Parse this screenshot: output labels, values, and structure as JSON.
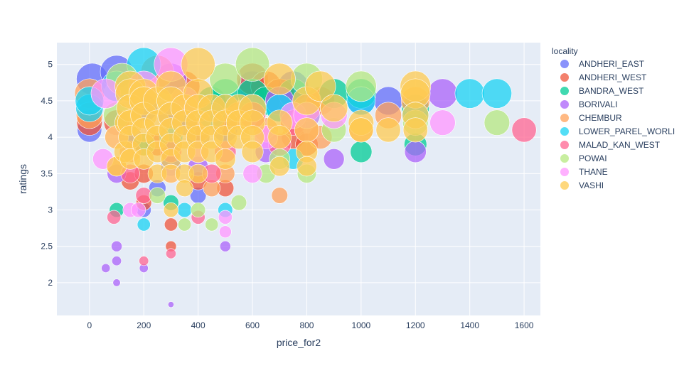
{
  "chart_data": {
    "type": "scatter",
    "xlabel": "price_for2",
    "ylabel": "ratings",
    "xlim": [
      -120,
      1660
    ],
    "ylim": [
      1.55,
      5.3
    ],
    "xticks": [
      0,
      200,
      400,
      600,
      800,
      1000,
      1200,
      1400,
      1600
    ],
    "yticks": [
      2,
      2.5,
      3,
      3.5,
      4,
      4.5,
      5
    ],
    "grid": true,
    "plot_bgcolor": "#e5ecf6",
    "legend": {
      "title": "locality",
      "placement": "right"
    },
    "series": [
      {
        "name": "ANDHERI_EAST",
        "color": "#636efa",
        "points": [
          [
            0,
            4.1
          ],
          [
            10,
            4.8
          ],
          [
            100,
            4.9
          ],
          [
            150,
            4.0
          ],
          [
            200,
            4.4
          ],
          [
            200,
            3.0
          ],
          [
            250,
            3.3
          ],
          [
            300,
            4.3
          ],
          [
            300,
            3.6
          ],
          [
            350,
            4.2
          ],
          [
            400,
            3.2
          ],
          [
            400,
            4.0
          ],
          [
            500,
            4.1
          ],
          [
            600,
            4.7
          ],
          [
            700,
            4.5
          ],
          [
            750,
            4.7
          ],
          [
            800,
            4.3
          ],
          [
            1000,
            4.5
          ],
          [
            1100,
            4.5
          ]
        ]
      },
      {
        "name": "ANDHERI_WEST",
        "color": "#ef553b",
        "points": [
          [
            0,
            4.2
          ],
          [
            100,
            4.2
          ],
          [
            150,
            3.4
          ],
          [
            200,
            3.5
          ],
          [
            200,
            3.1
          ],
          [
            250,
            3.9
          ],
          [
            300,
            2.8
          ],
          [
            300,
            2.5
          ],
          [
            350,
            4.7
          ],
          [
            400,
            3.4
          ],
          [
            500,
            4.2
          ],
          [
            500,
            3.3
          ],
          [
            600,
            4.8
          ],
          [
            650,
            4.7
          ],
          [
            700,
            4.6
          ],
          [
            750,
            4.0
          ],
          [
            800,
            3.9
          ],
          [
            850,
            4.5
          ]
        ]
      },
      {
        "name": "BANDRA_WEST",
        "color": "#00cc96",
        "points": [
          [
            100,
            3.0
          ],
          [
            200,
            3.9
          ],
          [
            300,
            3.1
          ],
          [
            450,
            4.5
          ],
          [
            500,
            4.6
          ],
          [
            600,
            4.6
          ],
          [
            650,
            4.5
          ],
          [
            700,
            4.4
          ],
          [
            750,
            4.6
          ],
          [
            800,
            4.3
          ],
          [
            900,
            4.6
          ],
          [
            1000,
            3.8
          ],
          [
            1000,
            4.6
          ],
          [
            1200,
            3.9
          ],
          [
            1200,
            4.4
          ]
        ]
      },
      {
        "name": "BORIVALI",
        "color": "#ab63fa",
        "points": [
          [
            60,
            2.2
          ],
          [
            100,
            2.0
          ],
          [
            100,
            2.3
          ],
          [
            100,
            2.5
          ],
          [
            100,
            3.5
          ],
          [
            200,
            2.2
          ],
          [
            300,
            1.7
          ],
          [
            300,
            4.8
          ],
          [
            400,
            3.6
          ],
          [
            500,
            2.5
          ],
          [
            650,
            3.8
          ],
          [
            700,
            4.5
          ],
          [
            900,
            3.7
          ],
          [
            1200,
            3.8
          ],
          [
            1300,
            4.6
          ]
        ]
      },
      {
        "name": "CHEMBUR",
        "color": "#ffa15a",
        "points": [
          [
            0,
            4.6
          ],
          [
            0,
            4.3
          ],
          [
            100,
            3.6
          ],
          [
            150,
            3.8
          ],
          [
            250,
            4.9
          ],
          [
            300,
            3.9
          ],
          [
            400,
            4.1
          ],
          [
            450,
            3.3
          ],
          [
            500,
            3.5
          ],
          [
            550,
            4.3
          ],
          [
            650,
            4.1
          ],
          [
            700,
            3.2
          ],
          [
            800,
            4.4
          ],
          [
            850,
            4.0
          ],
          [
            1000,
            4.1
          ],
          [
            1100,
            4.3
          ],
          [
            1200,
            4.5
          ]
        ]
      },
      {
        "name": "LOWER_PAREL_WORLI",
        "color": "#19d3f3",
        "points": [
          [
            0,
            4.4
          ],
          [
            0,
            4.5
          ],
          [
            100,
            4.7
          ],
          [
            200,
            5.0
          ],
          [
            200,
            2.8
          ],
          [
            300,
            4.0
          ],
          [
            350,
            3.0
          ],
          [
            450,
            4.3
          ],
          [
            500,
            3.0
          ],
          [
            600,
            4.4
          ],
          [
            700,
            4.4
          ],
          [
            750,
            3.7
          ],
          [
            1000,
            4.5
          ],
          [
            1200,
            4.3
          ],
          [
            1400,
            4.6
          ],
          [
            1500,
            4.6
          ]
        ]
      },
      {
        "name": "MALAD_KAN_WEST",
        "color": "#ff6692",
        "points": [
          [
            90,
            2.9
          ],
          [
            150,
            3.5
          ],
          [
            200,
            2.3
          ],
          [
            200,
            3.2
          ],
          [
            300,
            2.4
          ],
          [
            300,
            3.8
          ],
          [
            400,
            2.9
          ],
          [
            450,
            3.5
          ],
          [
            500,
            3.8
          ],
          [
            600,
            4.3
          ],
          [
            700,
            3.9
          ],
          [
            750,
            4.2
          ],
          [
            800,
            4.1
          ],
          [
            1600,
            4.1
          ]
        ]
      },
      {
        "name": "POWAI",
        "color": "#b6e880",
        "points": [
          [
            100,
            4.3
          ],
          [
            120,
            4.8
          ],
          [
            250,
            3.2
          ],
          [
            350,
            2.8
          ],
          [
            400,
            3.0
          ],
          [
            450,
            2.8
          ],
          [
            500,
            4.8
          ],
          [
            550,
            3.1
          ],
          [
            600,
            5.0
          ],
          [
            650,
            3.5
          ],
          [
            700,
            3.7
          ],
          [
            800,
            3.5
          ],
          [
            800,
            4.8
          ],
          [
            900,
            4.1
          ],
          [
            1000,
            4.7
          ],
          [
            1200,
            4.2
          ],
          [
            1500,
            4.2
          ]
        ]
      },
      {
        "name": "THANE",
        "color": "#ff97ff",
        "points": [
          [
            50,
            3.7
          ],
          [
            60,
            4.6
          ],
          [
            100,
            4.0
          ],
          [
            150,
            3.0
          ],
          [
            180,
            3.0
          ],
          [
            200,
            4.7
          ],
          [
            300,
            5.0
          ],
          [
            300,
            3.5
          ],
          [
            350,
            4.5
          ],
          [
            400,
            3.8
          ],
          [
            500,
            2.7
          ],
          [
            500,
            2.9
          ],
          [
            600,
            3.5
          ],
          [
            650,
            4.0
          ],
          [
            750,
            4.3
          ],
          [
            800,
            4.3
          ],
          [
            900,
            4.3
          ],
          [
            1300,
            4.2
          ]
        ]
      },
      {
        "name": "VASHI",
        "color": "#fecb52",
        "points": [
          [
            100,
            3.6
          ],
          [
            100,
            4.0
          ],
          [
            130,
            3.8
          ],
          [
            140,
            4.2
          ],
          [
            150,
            4.7
          ],
          [
            150,
            4.6
          ],
          [
            150,
            4.4
          ],
          [
            150,
            4.2
          ],
          [
            150,
            4.0
          ],
          [
            150,
            3.7
          ],
          [
            200,
            4.6
          ],
          [
            200,
            4.5
          ],
          [
            200,
            4.3
          ],
          [
            200,
            4.1
          ],
          [
            200,
            3.9
          ],
          [
            200,
            3.7
          ],
          [
            250,
            4.5
          ],
          [
            250,
            4.2
          ],
          [
            250,
            4.0
          ],
          [
            250,
            3.8
          ],
          [
            250,
            3.5
          ],
          [
            300,
            4.7
          ],
          [
            300,
            4.5
          ],
          [
            300,
            4.3
          ],
          [
            300,
            4.1
          ],
          [
            300,
            3.9
          ],
          [
            300,
            3.7
          ],
          [
            300,
            3.5
          ],
          [
            300,
            3.0
          ],
          [
            350,
            4.4
          ],
          [
            350,
            4.2
          ],
          [
            350,
            4.0
          ],
          [
            350,
            3.8
          ],
          [
            350,
            3.5
          ],
          [
            350,
            3.3
          ],
          [
            400,
            5.0
          ],
          [
            400,
            4.6
          ],
          [
            400,
            4.4
          ],
          [
            400,
            4.2
          ],
          [
            400,
            4.0
          ],
          [
            400,
            3.8
          ],
          [
            400,
            3.5
          ],
          [
            450,
            4.4
          ],
          [
            450,
            4.2
          ],
          [
            450,
            4.0
          ],
          [
            450,
            3.8
          ],
          [
            500,
            4.4
          ],
          [
            500,
            4.2
          ],
          [
            500,
            4.0
          ],
          [
            500,
            3.7
          ],
          [
            550,
            4.4
          ],
          [
            550,
            4.2
          ],
          [
            550,
            4.0
          ],
          [
            600,
            4.4
          ],
          [
            600,
            4.2
          ],
          [
            600,
            4.0
          ],
          [
            600,
            3.8
          ],
          [
            700,
            4.8
          ],
          [
            700,
            4.2
          ],
          [
            700,
            4.0
          ],
          [
            700,
            3.6
          ],
          [
            800,
            4.5
          ],
          [
            800,
            4.1
          ],
          [
            800,
            3.8
          ],
          [
            800,
            3.6
          ],
          [
            850,
            4.7
          ],
          [
            900,
            4.4
          ],
          [
            1000,
            4.2
          ],
          [
            1000,
            4.1
          ],
          [
            1100,
            4.1
          ],
          [
            1200,
            4.7
          ],
          [
            1200,
            4.6
          ],
          [
            1200,
            4.3
          ],
          [
            1200,
            4.1
          ]
        ]
      }
    ]
  }
}
